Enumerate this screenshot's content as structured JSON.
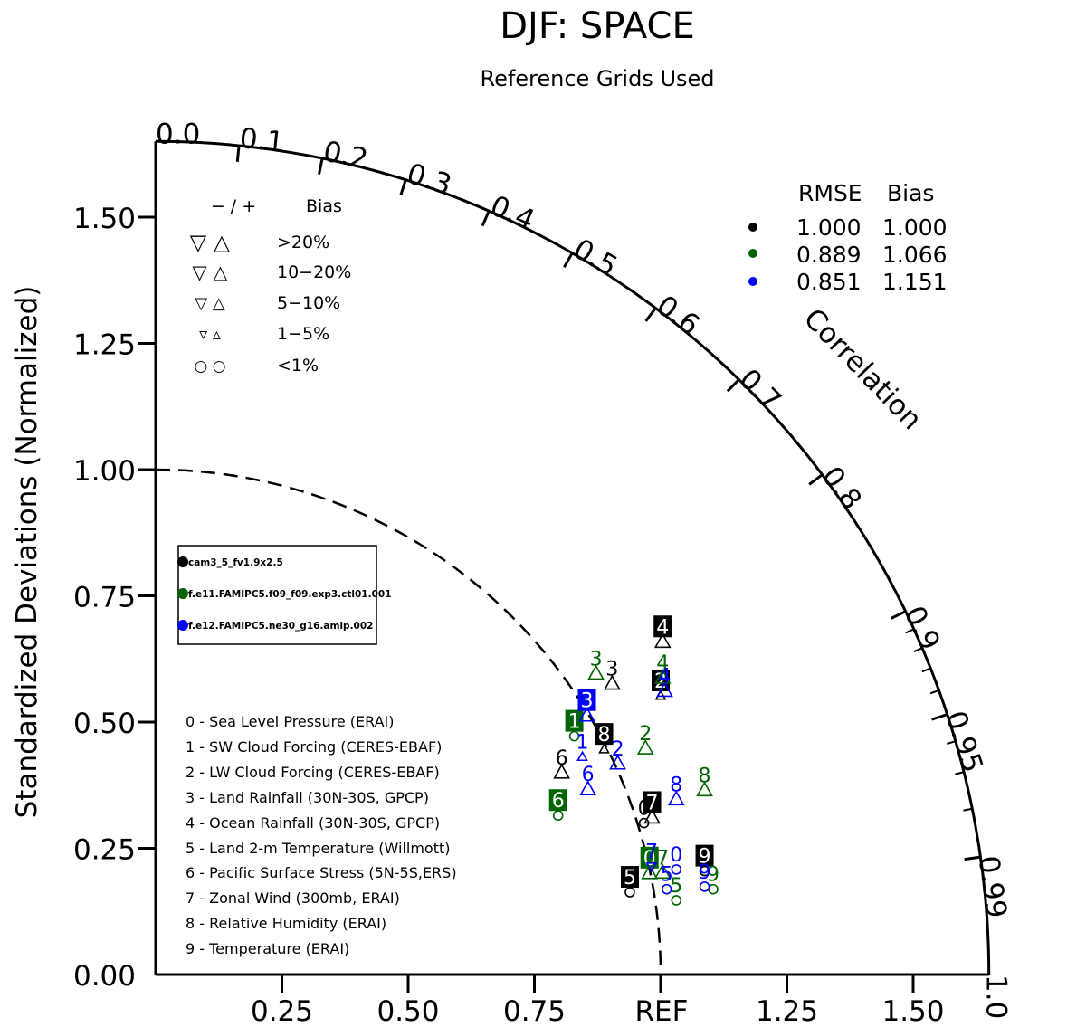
{
  "chart_data": {
    "type": "scatter",
    "title": "DJF: SPACE",
    "subtitle": "Reference Grids Used",
    "ylabel": "Standardized Deviations (Normalized)",
    "arc_label": "Correlation",
    "ref_label": "REF",
    "xlim": [
      0,
      1.65
    ],
    "ylim": [
      0,
      1.65
    ],
    "y_ticks": [
      {
        "value": 0.0,
        "label": "0.00"
      },
      {
        "value": 0.25,
        "label": "0.25"
      },
      {
        "value": 0.5,
        "label": "0.50"
      },
      {
        "value": 0.75,
        "label": "0.75"
      },
      {
        "value": 1.0,
        "label": "1.00"
      },
      {
        "value": 1.25,
        "label": "1.25"
      },
      {
        "value": 1.5,
        "label": "1.50"
      }
    ],
    "x_ticks": [
      {
        "value": 0.25,
        "label": "0.25"
      },
      {
        "value": 0.5,
        "label": "0.50"
      },
      {
        "value": 0.75,
        "label": "0.75"
      },
      {
        "value": 1.0,
        "label": "REF"
      },
      {
        "value": 1.25,
        "label": "1.25"
      },
      {
        "value": 1.5,
        "label": "1.50"
      }
    ],
    "corr_ticks": [
      {
        "value": 0.0,
        "label": "0.0"
      },
      {
        "value": 0.1,
        "label": "0.1"
      },
      {
        "value": 0.2,
        "label": "0.2"
      },
      {
        "value": 0.3,
        "label": "0.3"
      },
      {
        "value": 0.4,
        "label": "0.4"
      },
      {
        "value": 0.5,
        "label": "0.5"
      },
      {
        "value": 0.6,
        "label": "0.6"
      },
      {
        "value": 0.7,
        "label": "0.7"
      },
      {
        "value": 0.8,
        "label": "0.8"
      },
      {
        "value": 0.9,
        "label": "0.9"
      },
      {
        "value": 0.95,
        "label": "0.95"
      },
      {
        "value": 0.99,
        "label": "0.99"
      },
      {
        "value": 1.0,
        "label": "1.0"
      }
    ],
    "grid": false,
    "bias_legend": {
      "header_signs": "− / +",
      "header_bias": "Bias",
      "rows": [
        {
          "label": ">20%",
          "symbols": "▽ △"
        },
        {
          "label": "10−20%",
          "symbols": "▽ △"
        },
        {
          "label": "5−10%",
          "symbols": "▽ △"
        },
        {
          "label": "1−5%",
          "symbols": "▿ ▵"
        },
        {
          "label": "<1%",
          "symbols": "○ ○"
        }
      ]
    },
    "rmse_legend": {
      "header_rmse": "RMSE",
      "header_bias": "Bias",
      "rows": [
        {
          "color": "#000000",
          "rmse": "1.000",
          "bias": "1.000"
        },
        {
          "color": "#006400",
          "rmse": "0.889",
          "bias": "1.066"
        },
        {
          "color": "#0000ff",
          "rmse": "0.851",
          "bias": "1.151"
        }
      ]
    },
    "series": [
      {
        "name": "cam3_5_fv1.9x2.5",
        "color": "#000000"
      },
      {
        "name": "f.e11.FAMIPC5.f09_f09.exp3.ctl01.001",
        "color": "#006400"
      },
      {
        "name": "f.e12.FAMIPC5.ne30_g16.amip.002",
        "color": "#0000ff"
      }
    ],
    "variables": [
      "0 - Sea Level Pressure (ERAI)",
      "1 - SW Cloud Forcing (CERES-EBAF)",
      "2 - LW Cloud Forcing (CERES-EBAF)",
      "3 - Land Rainfall (30N-30S, GPCP)",
      "4 - Ocean Rainfall (30N-30S, GPCP)",
      "5 - Land 2-m Temperature (Willmott)",
      "6 - Pacific Surface Stress (5N-5S,ERS)",
      "7 - Zonal Wind (300mb, ERAI)",
      "8 - Relative Humidity (ERAI)",
      "9 - Temperature (ERAI)"
    ],
    "points": [
      {
        "series": 0,
        "id": "0",
        "x": 0.967,
        "y": 0.3,
        "marker": "circle",
        "boxed": false
      },
      {
        "series": 0,
        "id": "2",
        "x": 1.0,
        "y": 0.552,
        "marker": "tri-up-sm",
        "boxed": true
      },
      {
        "series": 0,
        "id": "3",
        "x": 0.904,
        "y": 0.576,
        "marker": "tri-up",
        "boxed": false
      },
      {
        "series": 0,
        "id": "4",
        "x": 1.004,
        "y": 0.659,
        "marker": "tri-up",
        "boxed": true
      },
      {
        "series": 0,
        "id": "5",
        "x": 0.939,
        "y": 0.163,
        "marker": "circle",
        "boxed": true
      },
      {
        "series": 0,
        "id": "6",
        "x": 0.804,
        "y": 0.4,
        "marker": "tri-up",
        "boxed": false
      },
      {
        "series": 0,
        "id": "7",
        "x": 0.983,
        "y": 0.311,
        "marker": "tri-up",
        "boxed": true
      },
      {
        "series": 0,
        "id": "8",
        "x": 0.888,
        "y": 0.446,
        "marker": "tri-up-sm",
        "boxed": true
      },
      {
        "series": 0,
        "id": "9",
        "x": 1.087,
        "y": 0.205,
        "marker": "circle",
        "boxed": true
      },
      {
        "series": 1,
        "id": "0",
        "x": 0.978,
        "y": 0.201,
        "marker": "tri-up",
        "boxed": true
      },
      {
        "series": 1,
        "id": "1",
        "x": 0.829,
        "y": 0.472,
        "marker": "circle",
        "boxed": true
      },
      {
        "series": 1,
        "id": "2",
        "x": 0.97,
        "y": 0.448,
        "marker": "tri-up",
        "boxed": false
      },
      {
        "series": 1,
        "id": "3",
        "x": 0.872,
        "y": 0.596,
        "marker": "tri-up",
        "boxed": false
      },
      {
        "series": 1,
        "id": "4",
        "x": 1.004,
        "y": 0.588,
        "marker": "tri-up",
        "boxed": false
      },
      {
        "series": 1,
        "id": "5",
        "x": 1.031,
        "y": 0.147,
        "marker": "circle",
        "boxed": false
      },
      {
        "series": 1,
        "id": "6",
        "x": 0.797,
        "y": 0.315,
        "marker": "circle",
        "boxed": true
      },
      {
        "series": 1,
        "id": "7",
        "x": 1.004,
        "y": 0.202,
        "marker": "tri-up",
        "boxed": false
      },
      {
        "series": 1,
        "id": "8",
        "x": 1.087,
        "y": 0.365,
        "marker": "tri-up",
        "boxed": false
      },
      {
        "series": 1,
        "id": "9",
        "x": 1.104,
        "y": 0.169,
        "marker": "circle",
        "boxed": false
      },
      {
        "series": 2,
        "id": "0",
        "x": 1.031,
        "y": 0.208,
        "marker": "circle",
        "boxed": false
      },
      {
        "series": 2,
        "id": "1",
        "x": 0.845,
        "y": 0.431,
        "marker": "tri-up-sm",
        "boxed": false
      },
      {
        "series": 2,
        "id": "2",
        "x": 0.915,
        "y": 0.418,
        "marker": "tri-up",
        "boxed": false
      },
      {
        "series": 2,
        "id": "3",
        "x": 0.854,
        "y": 0.513,
        "marker": "tri-up",
        "boxed": true
      },
      {
        "series": 2,
        "id": "4",
        "x": 1.008,
        "y": 0.562,
        "marker": "tri-up",
        "boxed": false
      },
      {
        "series": 2,
        "id": "5",
        "x": 1.012,
        "y": 0.169,
        "marker": "circle",
        "boxed": false
      },
      {
        "series": 2,
        "id": "6",
        "x": 0.856,
        "y": 0.367,
        "marker": "tri-up",
        "boxed": false
      },
      {
        "series": 2,
        "id": "7",
        "x": 0.982,
        "y": 0.214,
        "marker": "tri-down",
        "boxed": false
      },
      {
        "series": 2,
        "id": "8",
        "x": 1.031,
        "y": 0.347,
        "marker": "tri-up",
        "boxed": false
      },
      {
        "series": 2,
        "id": "9",
        "x": 1.087,
        "y": 0.174,
        "marker": "circle",
        "boxed": false
      }
    ]
  }
}
